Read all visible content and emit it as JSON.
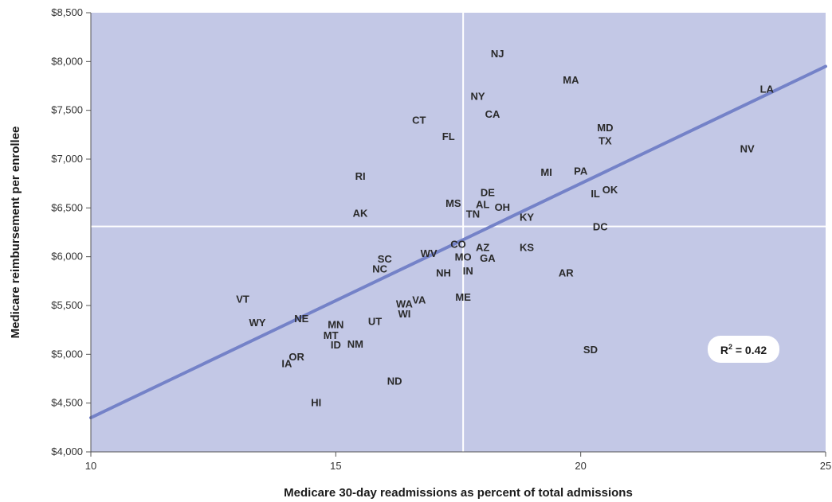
{
  "chart_data": {
    "type": "scatter",
    "title": "",
    "xlabel": "Medicare 30-day readmissions as percent of total admissions",
    "ylabel": "Medicare reimbursement per enrollee",
    "xlim": [
      10,
      25
    ],
    "ylim": [
      4000,
      8500
    ],
    "x_ticks": [
      10,
      15,
      20,
      25
    ],
    "y_ticks": [
      4000,
      4500,
      5000,
      5500,
      6000,
      6500,
      7000,
      7500,
      8000,
      8500
    ],
    "y_tick_labels": [
      "$4,000",
      "$4,500",
      "$5,000",
      "$5,500",
      "$6,000",
      "$6,500",
      "$7,000",
      "$7,500",
      "$8,000",
      "$8,500"
    ],
    "reference_lines": {
      "x": 17.6,
      "y": 6310
    },
    "trendline": {
      "x": [
        10,
        25
      ],
      "y": [
        4350,
        7950
      ]
    },
    "annotation": {
      "label": "R",
      "superscript": "2",
      "value_text": " = 0.42"
    },
    "points": [
      {
        "label": "NJ",
        "x": 18.3,
        "y": 8085
      },
      {
        "label": "MA",
        "x": 19.8,
        "y": 7815
      },
      {
        "label": "LA",
        "x": 23.8,
        "y": 7720
      },
      {
        "label": "NY",
        "x": 17.9,
        "y": 7650
      },
      {
        "label": "CA",
        "x": 18.2,
        "y": 7465
      },
      {
        "label": "CT",
        "x": 16.7,
        "y": 7405
      },
      {
        "label": "MD",
        "x": 20.5,
        "y": 7325
      },
      {
        "label": "FL",
        "x": 17.3,
        "y": 7235
      },
      {
        "label": "TX",
        "x": 20.5,
        "y": 7190
      },
      {
        "label": "NV",
        "x": 23.4,
        "y": 7110
      },
      {
        "label": "MI",
        "x": 19.3,
        "y": 6870
      },
      {
        "label": "PA",
        "x": 20.0,
        "y": 6880
      },
      {
        "label": "RI",
        "x": 15.5,
        "y": 6830
      },
      {
        "label": "OK",
        "x": 20.6,
        "y": 6690
      },
      {
        "label": "IL",
        "x": 20.3,
        "y": 6650
      },
      {
        "label": "DE",
        "x": 18.1,
        "y": 6660
      },
      {
        "label": "MS",
        "x": 17.4,
        "y": 6550
      },
      {
        "label": "AL",
        "x": 18.0,
        "y": 6540
      },
      {
        "label": "OH",
        "x": 18.4,
        "y": 6510
      },
      {
        "label": "AK",
        "x": 15.5,
        "y": 6450
      },
      {
        "label": "TN",
        "x": 17.8,
        "y": 6440
      },
      {
        "label": "KY",
        "x": 18.9,
        "y": 6410
      },
      {
        "label": "DC",
        "x": 20.4,
        "y": 6310
      },
      {
        "label": "CO",
        "x": 17.5,
        "y": 6130
      },
      {
        "label": "AZ",
        "x": 18.0,
        "y": 6100
      },
      {
        "label": "KS",
        "x": 18.9,
        "y": 6100
      },
      {
        "label": "WV",
        "x": 16.9,
        "y": 6040
      },
      {
        "label": "MO",
        "x": 17.6,
        "y": 6000
      },
      {
        "label": "GA",
        "x": 18.1,
        "y": 5990
      },
      {
        "label": "SC",
        "x": 16.0,
        "y": 5980
      },
      {
        "label": "NC",
        "x": 15.9,
        "y": 5880
      },
      {
        "label": "IN",
        "x": 17.7,
        "y": 5860
      },
      {
        "label": "NH",
        "x": 17.2,
        "y": 5840
      },
      {
        "label": "AR",
        "x": 19.7,
        "y": 5840
      },
      {
        "label": "ME",
        "x": 17.6,
        "y": 5590
      },
      {
        "label": "VT",
        "x": 13.1,
        "y": 5570
      },
      {
        "label": "VA",
        "x": 16.7,
        "y": 5560
      },
      {
        "label": "WA",
        "x": 16.4,
        "y": 5520
      },
      {
        "label": "WI",
        "x": 16.4,
        "y": 5420
      },
      {
        "label": "NE",
        "x": 14.3,
        "y": 5370
      },
      {
        "label": "WY",
        "x": 13.4,
        "y": 5330
      },
      {
        "label": "UT",
        "x": 15.8,
        "y": 5340
      },
      {
        "label": "MN",
        "x": 15.0,
        "y": 5310
      },
      {
        "label": "MT",
        "x": 14.9,
        "y": 5200
      },
      {
        "label": "NM",
        "x": 15.4,
        "y": 5110
      },
      {
        "label": "ID",
        "x": 15.0,
        "y": 5100
      },
      {
        "label": "SD",
        "x": 20.2,
        "y": 5050
      },
      {
        "label": "OR",
        "x": 14.2,
        "y": 4980
      },
      {
        "label": "IA",
        "x": 14.0,
        "y": 4910
      },
      {
        "label": "ND",
        "x": 16.2,
        "y": 4730
      },
      {
        "label": "HI",
        "x": 14.6,
        "y": 4510
      }
    ]
  }
}
